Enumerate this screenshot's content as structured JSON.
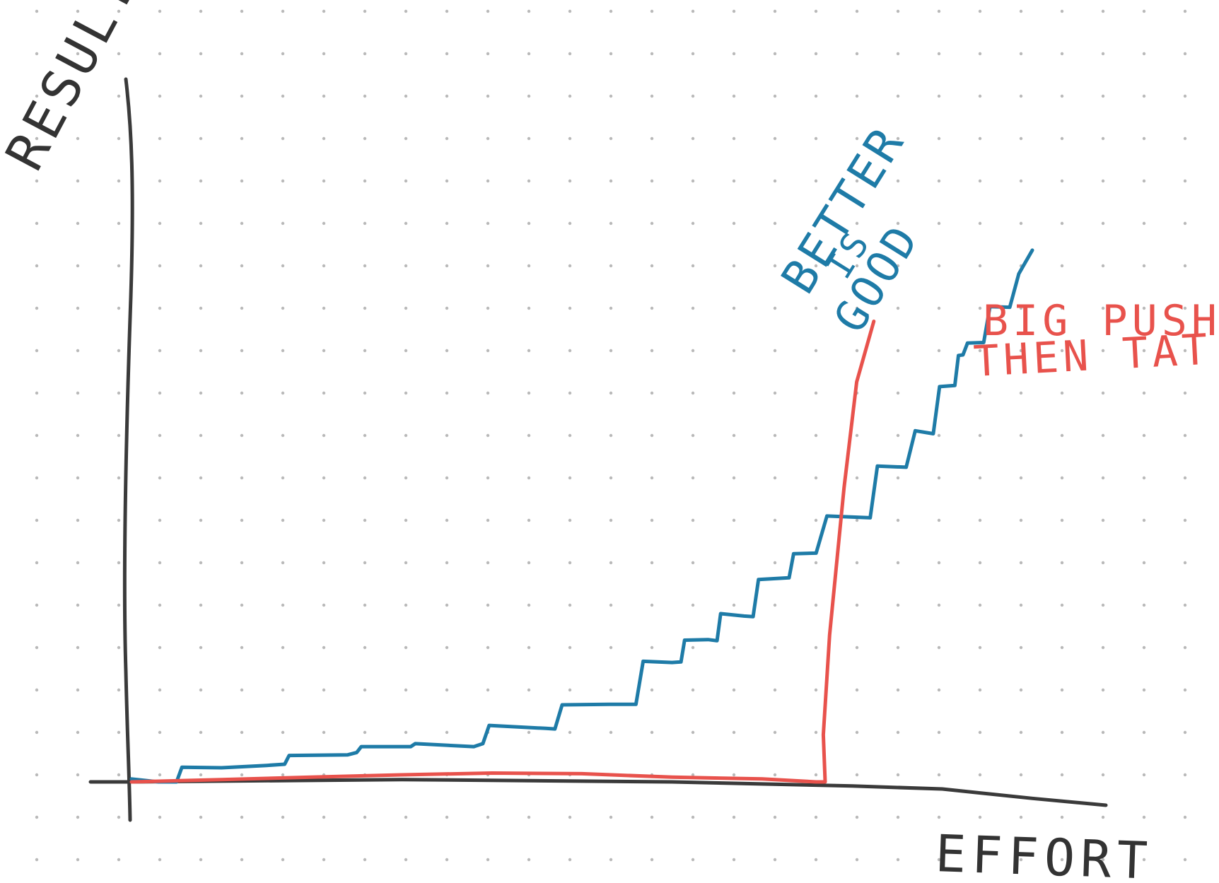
{
  "chart_data": {
    "type": "line",
    "title": "",
    "xlabel": "EFFORT",
    "ylabel": "RESULTS",
    "grid": "dotted",
    "xlim": [
      0,
      100
    ],
    "ylim": [
      0,
      100
    ],
    "series": [
      {
        "key": "steps",
        "color": "#1e7ba7",
        "points": [
          [
            0,
            0.5
          ],
          [
            3,
            0
          ],
          [
            5,
            0
          ],
          [
            5.6,
            2.5
          ],
          [
            10,
            2.4
          ],
          [
            15,
            2.8
          ],
          [
            17,
            3
          ],
          [
            17.5,
            4.5
          ],
          [
            24,
            4.6
          ],
          [
            25,
            5
          ],
          [
            25.5,
            6
          ],
          [
            30,
            6
          ],
          [
            31,
            6
          ],
          [
            31.5,
            6.5
          ],
          [
            38,
            6
          ],
          [
            39,
            6.5
          ],
          [
            39.7,
            9.6
          ],
          [
            46,
            9.1
          ],
          [
            47,
            9
          ],
          [
            47.8,
            13.1
          ],
          [
            53,
            13.2
          ],
          [
            56,
            13.2
          ],
          [
            56.8,
            20.5
          ],
          [
            60,
            20.3
          ],
          [
            61,
            20.4
          ],
          [
            61.4,
            24.1
          ],
          [
            64,
            24.2
          ],
          [
            65,
            24
          ],
          [
            65.4,
            28.6
          ],
          [
            68,
            28.2
          ],
          [
            69,
            28.1
          ],
          [
            69.6,
            34.4
          ],
          [
            73,
            34.7
          ],
          [
            73.5,
            38.8
          ],
          [
            76,
            38.9
          ],
          [
            77.2,
            45.2
          ],
          [
            82,
            44.9
          ],
          [
            82.8,
            53.7
          ],
          [
            86,
            53.5
          ],
          [
            87,
            59.7
          ],
          [
            89,
            59.2
          ],
          [
            89.7,
            67.2
          ],
          [
            91.4,
            67.4
          ],
          [
            91.8,
            72.5
          ],
          [
            92.3,
            72.6
          ],
          [
            92.8,
            74.6
          ],
          [
            94.6,
            74.7
          ],
          [
            95.3,
            80.8
          ],
          [
            97.5,
            80.7
          ],
          [
            98.5,
            86.4
          ],
          [
            100,
            90.4
          ]
        ]
      },
      {
        "key": "push",
        "color": "#e8524c",
        "points": [
          [
            0,
            0
          ],
          [
            10,
            0.4
          ],
          [
            20,
            0.8
          ],
          [
            30,
            1.2
          ],
          [
            40,
            1.5
          ],
          [
            50,
            1.4
          ],
          [
            60,
            0.8
          ],
          [
            70,
            0.5
          ],
          [
            76,
            0
          ],
          [
            77,
            0
          ],
          [
            76.8,
            8
          ],
          [
            77.5,
            25
          ],
          [
            79.1,
            50
          ],
          [
            80.5,
            68
          ],
          [
            82.4,
            78.3
          ]
        ]
      },
      {
        "key": "axis",
        "color": "#3a3a3a",
        "points": [
          [
            0,
            0
          ],
          [
            30,
            0.4
          ],
          [
            60,
            0
          ],
          [
            80,
            -0.7
          ],
          [
            90,
            -1.2
          ],
          [
            100,
            -2.8
          ]
        ]
      }
    ],
    "annotations": [
      {
        "key": "push_label",
        "lines": [
          "BIG PUSH",
          "THEN TAT"
        ],
        "color": "#e8524c"
      },
      {
        "key": "steps_label",
        "lines": [
          "BETTER",
          "IS",
          "GOOD"
        ],
        "color": "#1e7ba7"
      }
    ]
  }
}
